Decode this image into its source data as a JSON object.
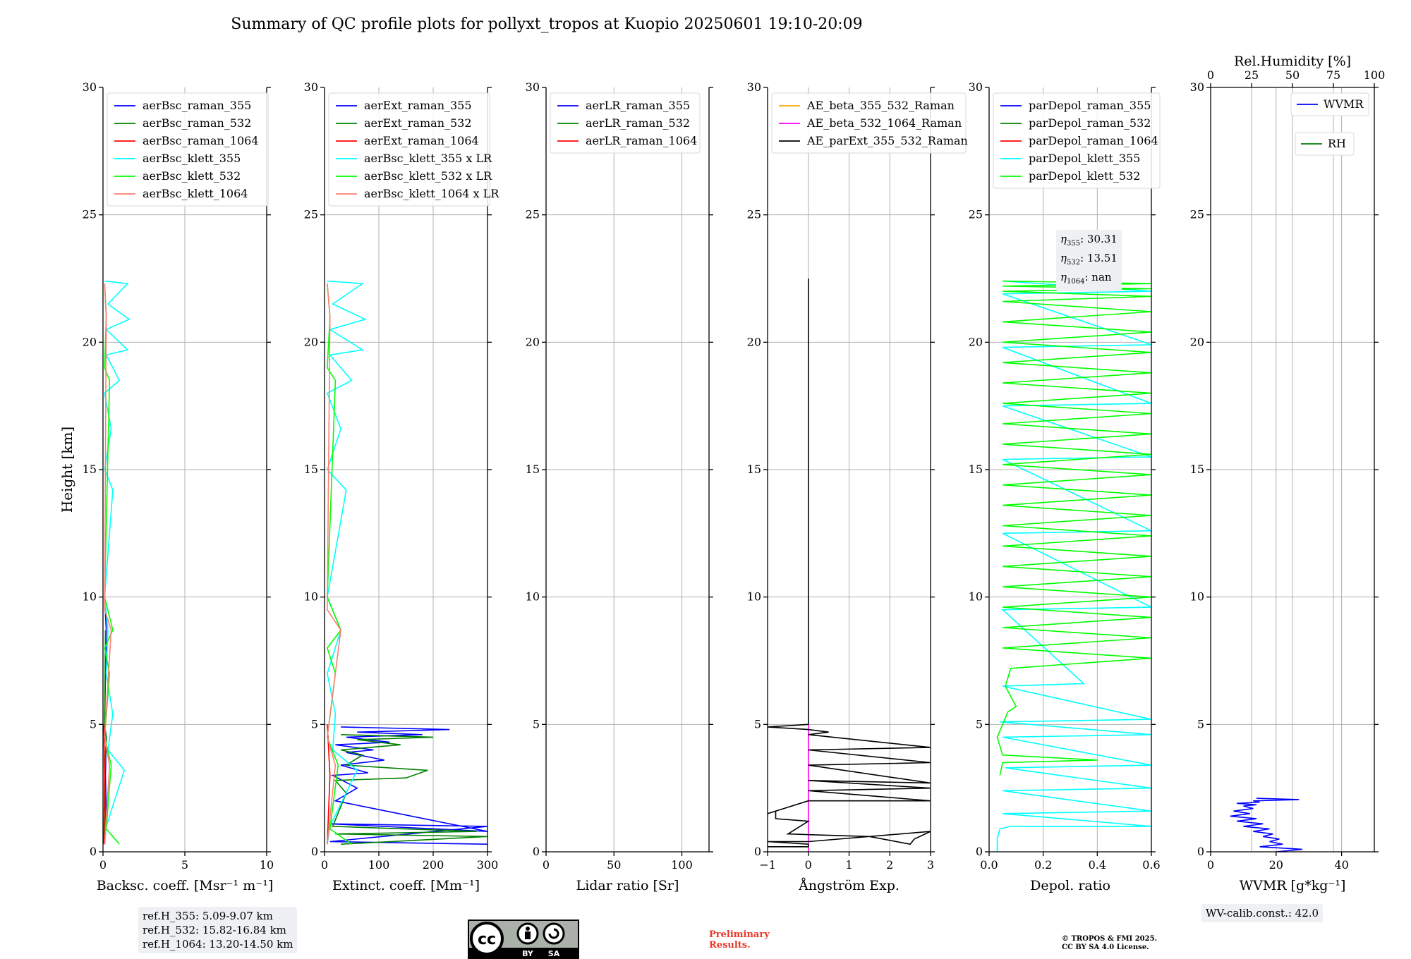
{
  "figure_title": "Summary of QC profile plots for pollyxt_tropos at Kuopio 20250601 19:10-20:09",
  "ylabel": "Height [km]",
  "ref_heights": [
    "ref.H_355: 5.09-9.07 km",
    "ref.H_532: 15.82-16.84 km",
    "ref.H_1064: 13.20-14.50 km"
  ],
  "eta_lines": {
    "e355": "30.31",
    "e532": "13.51",
    "e1064": "nan"
  },
  "wv_calib": "WV-calib.const.: 42.0",
  "preliminary": [
    "Preliminary",
    "Results."
  ],
  "copyright": [
    "© TROPOS & FMI 2025.",
    "CC BY SA 4.0 License."
  ],
  "license_badge": {
    "left": "cc",
    "by": "BY",
    "sa": "SA"
  },
  "colors": {
    "blue": "#0000ff",
    "green": "#008000",
    "red": "#ff0000",
    "cyan": "#00ffff",
    "lime": "#00ff00",
    "salmon": "#fa8072",
    "orange": "#ffa500",
    "magenta": "#ff00ff",
    "black": "#000000"
  },
  "chart_data": [
    {
      "type": "line",
      "xlabel": "Backsc. coeff. [Msr⁻¹ m⁻¹]",
      "xlim": [
        0,
        10
      ],
      "ylim": [
        0,
        30
      ],
      "xticks": [
        0,
        5,
        10
      ],
      "yticks": [
        0,
        5,
        10,
        15,
        20,
        25,
        30
      ],
      "grid": true,
      "legend": "top-left",
      "series": [
        {
          "name": "aerBsc_raman_355",
          "color": "#0000ff",
          "x": [
            0.1,
            0.2,
            0.15,
            0.2,
            0.1,
            0.2,
            0.1
          ],
          "y": [
            0.3,
            1.5,
            3.0,
            4.5,
            5.0,
            8.7,
            10.0
          ]
        },
        {
          "name": "aerBsc_raman_532",
          "color": "#008000",
          "x": [
            0.1,
            0.15,
            0.1,
            0.2,
            0.1,
            0.15
          ],
          "y": [
            0.3,
            1.5,
            3.0,
            4.5,
            5.0,
            8.7
          ]
        },
        {
          "name": "aerBsc_raman_1064",
          "color": "#ff0000",
          "x": [
            0.05,
            0.1,
            0.05
          ],
          "y": [
            0.3,
            3.0,
            5.0
          ]
        },
        {
          "name": "aerBsc_klett_355",
          "color": "#00ffff",
          "x": [
            0.1,
            0.2,
            1.3,
            0.3,
            0.6,
            0.2,
            0.3,
            0.1,
            0.6,
            0.1,
            0.5,
            0.1,
            1.0,
            0.2,
            1.5,
            0.2,
            1.6,
            0.3,
            1.5,
            0.1
          ],
          "y": [
            0.3,
            1.0,
            3.2,
            4.0,
            5.4,
            7.0,
            8.7,
            10.0,
            14.2,
            15.0,
            16.6,
            18.0,
            18.5,
            19.5,
            19.7,
            20.5,
            20.9,
            21.5,
            22.3,
            22.4
          ]
        },
        {
          "name": "aerBsc_klett_532",
          "color": "#00ff00",
          "x": [
            1.0,
            0.2,
            0.5,
            0.1,
            0.4,
            0.1,
            0.6,
            0.1,
            0.4,
            0.1,
            0.2,
            0.1
          ],
          "y": [
            0.3,
            0.9,
            3.4,
            4.5,
            7.0,
            8.0,
            8.7,
            10.0,
            18.5,
            19.0,
            21.0,
            22.3
          ]
        },
        {
          "name": "aerBsc_klett_1064",
          "color": "#fa8072",
          "x": [
            0.1,
            0.4,
            0.1,
            0.5,
            0.1,
            0.2,
            0.1
          ],
          "y": [
            0.3,
            3.4,
            4.5,
            8.7,
            9.5,
            21.0,
            22.3
          ]
        }
      ]
    },
    {
      "type": "line",
      "xlabel": "Extinct. coeff. [Mm⁻¹]",
      "xlim": [
        0,
        300
      ],
      "ylim": [
        0,
        30
      ],
      "xticks": [
        0,
        100,
        200,
        300
      ],
      "yticks": [
        0,
        5,
        10,
        15,
        20,
        25,
        30
      ],
      "grid": true,
      "legend": "top-left",
      "series": [
        {
          "name": "aerExt_raman_355",
          "color": "#0000ff",
          "x": [
            300,
            10,
            300,
            10,
            300,
            20,
            60,
            15,
            80,
            30,
            110,
            40,
            90,
            20,
            120,
            40,
            180,
            60,
            230,
            30
          ],
          "y": [
            0.3,
            0.4,
            1.0,
            1.1,
            0.8,
            2.0,
            2.5,
            3.0,
            3.1,
            3.4,
            3.6,
            3.9,
            4.0,
            4.2,
            4.3,
            4.5,
            4.6,
            4.7,
            4.8,
            4.9
          ]
        },
        {
          "name": "aerExt_raman_532",
          "color": "#008000",
          "x": [
            30,
            300,
            20,
            280,
            15,
            40,
            20,
            150,
            190,
            40,
            70,
            30,
            140,
            60,
            200,
            30
          ],
          "y": [
            0.3,
            0.6,
            0.7,
            0.8,
            1.0,
            2.3,
            2.8,
            2.9,
            3.2,
            3.4,
            3.8,
            4.0,
            4.2,
            4.4,
            4.5,
            4.6
          ]
        },
        {
          "name": "aerExt_raman_1064",
          "color": "#ff0000",
          "x": [
            5,
            10,
            5
          ],
          "y": [
            0.3,
            3.0,
            5.0
          ]
        },
        {
          "name": "aerBsc_klett_355 x LR",
          "color": "#00ffff",
          "x": [
            5,
            10,
            60,
            15,
            20,
            5,
            30,
            5,
            40,
            5,
            30,
            5,
            50,
            10,
            70,
            10,
            75,
            15,
            70,
            5
          ],
          "y": [
            0.3,
            1.0,
            3.2,
            4.0,
            5.4,
            7.0,
            8.7,
            10.0,
            14.2,
            15.0,
            16.6,
            18.0,
            18.5,
            19.5,
            19.7,
            20.5,
            20.9,
            21.5,
            22.3,
            22.4
          ]
        },
        {
          "name": "aerBsc_klett_532 x LR",
          "color": "#00ff00",
          "x": [
            50,
            10,
            25,
            5,
            20,
            5,
            30,
            5,
            20,
            5,
            10,
            5
          ],
          "y": [
            0.3,
            0.9,
            3.4,
            4.5,
            7.0,
            8.0,
            8.7,
            10.0,
            18.5,
            19.0,
            21.0,
            22.3
          ]
        },
        {
          "name": "aerBsc_klett_1064 x LR",
          "color": "#fa8072",
          "x": [
            5,
            20,
            5,
            30,
            5,
            10,
            5
          ],
          "y": [
            0.3,
            3.4,
            4.5,
            8.7,
            9.5,
            21.0,
            22.3
          ]
        }
      ]
    },
    {
      "type": "line",
      "xlabel": "Lidar ratio [Sr]",
      "xlim": [
        0,
        120
      ],
      "ylim": [
        0,
        30
      ],
      "xticks": [
        0,
        50,
        100
      ],
      "yticks": [
        0,
        5,
        10,
        15,
        20,
        25,
        30
      ],
      "grid": true,
      "legend": "top-left",
      "series": [
        {
          "name": "aerLR_raman_355",
          "color": "#0000ff",
          "x": [],
          "y": []
        },
        {
          "name": "aerLR_raman_532",
          "color": "#008000",
          "x": [],
          "y": []
        },
        {
          "name": "aerLR_raman_1064",
          "color": "#ff0000",
          "x": [],
          "y": []
        }
      ]
    },
    {
      "type": "line",
      "xlabel": "Ångström Exp.",
      "xlim": [
        -1,
        3
      ],
      "ylim": [
        0,
        30
      ],
      "xticks": [
        -1,
        0,
        1,
        2,
        3
      ],
      "xticklabels": [
        "−1",
        "0",
        "1",
        "2",
        "3"
      ],
      "yticks": [
        0,
        5,
        10,
        15,
        20,
        25,
        30
      ],
      "grid": true,
      "legend": "top-left",
      "series": [
        {
          "name": "AE_beta_355_532_Raman",
          "color": "#ffa500",
          "x": [],
          "y": []
        },
        {
          "name": "AE_beta_532_1064_Raman",
          "color": "#ff00ff",
          "x": [
            0,
            0
          ],
          "y": [
            0,
            5.0
          ]
        },
        {
          "name": "AE_parExt_355_532_Raman",
          "color": "#000000",
          "x": [
            -1,
            0,
            0,
            -1,
            0,
            3,
            2.6,
            2.5,
            1.5,
            -0.5,
            0,
            -0.8,
            -0.8,
            -1,
            0,
            3,
            0,
            3,
            0,
            3,
            0,
            3,
            0,
            3,
            0,
            0.5,
            0,
            -1,
            0,
            0
          ],
          "y": [
            0.2,
            0.2,
            0.3,
            0.4,
            0.4,
            0.8,
            0.5,
            0.3,
            0.6,
            0.7,
            1.2,
            1.3,
            1.6,
            1.5,
            2.0,
            2.0,
            2.4,
            2.5,
            2.8,
            2.7,
            3.4,
            3.5,
            4.0,
            4.1,
            4.6,
            4.7,
            4.8,
            4.9,
            5.0,
            22.5
          ]
        }
      ]
    },
    {
      "type": "line",
      "xlabel": "Depol. ratio",
      "xlim": [
        0,
        0.6
      ],
      "ylim": [
        0,
        30
      ],
      "xticks": [
        0,
        0.2,
        0.4,
        0.6
      ],
      "xticklabels": [
        "0.0",
        "0.2",
        "0.4",
        "0.6"
      ],
      "yticks": [
        0,
        5,
        10,
        15,
        20,
        25,
        30
      ],
      "grid": true,
      "legend": "top-left",
      "annotation": "η₃₅₅: 30.31 / η₅₃₂: 13.51 / η₁₀₆₄: nan",
      "series": [
        {
          "name": "parDepol_raman_355",
          "color": "#0000ff",
          "x": [],
          "y": []
        },
        {
          "name": "parDepol_raman_532",
          "color": "#008000",
          "x": [],
          "y": []
        },
        {
          "name": "parDepol_raman_1064",
          "color": "#ff0000",
          "x": [],
          "y": []
        },
        {
          "name": "parDepol_klett_355",
          "color": "#00ffff",
          "x": [
            0.03,
            0.03,
            0.04,
            0.08,
            0.6,
            0.05,
            0.6,
            0.05,
            0.6,
            0.06,
            0.6,
            0.05,
            0.6,
            0.04,
            0.6,
            0.05,
            0.35,
            0.05,
            0.6,
            0.05,
            0.6,
            0.05,
            0.6,
            0.05,
            0.6,
            0.05,
            0.6,
            0.05,
            0.6,
            0.05
          ],
          "y": [
            0,
            0.5,
            0.9,
            1.0,
            1.0,
            1.5,
            1.6,
            2.4,
            2.5,
            3.3,
            3.4,
            4.5,
            4.6,
            5.1,
            5.2,
            6.5,
            6.6,
            9.5,
            9.6,
            12.5,
            12.6,
            15.4,
            15.5,
            17.5,
            17.6,
            19.8,
            19.9,
            21.9,
            22.0,
            22.4
          ]
        },
        {
          "name": "parDepol_klett_532",
          "color": "#00ff00",
          "x": [
            0.04,
            0.05,
            0.4,
            0.05,
            0.03,
            0.07,
            0.1,
            0.06,
            0.08,
            0.6,
            0.05,
            0.6,
            0.05,
            0.6,
            0.05,
            0.6,
            0.05,
            0.6,
            0.05,
            0.6,
            0.05,
            0.6,
            0.05,
            0.6,
            0.05,
            0.6,
            0.05,
            0.6,
            0.05,
            0.6,
            0.05,
            0.6,
            0.05,
            0.6,
            0.05,
            0.6,
            0.05,
            0.6,
            0.05,
            0.6,
            0.05,
            0.6,
            0.05,
            0.6,
            0.05,
            0.6,
            0.05,
            0.6,
            0.05,
            0.6,
            0.05
          ],
          "y": [
            3.0,
            3.5,
            3.6,
            3.8,
            4.5,
            5.5,
            5.7,
            6.5,
            7.2,
            7.6,
            8.0,
            8.4,
            8.8,
            9.2,
            9.6,
            10.0,
            10.4,
            10.8,
            11.2,
            11.6,
            12.0,
            12.4,
            12.8,
            13.2,
            13.6,
            14.0,
            14.4,
            14.8,
            15.2,
            15.6,
            16.0,
            16.4,
            16.8,
            17.2,
            17.6,
            18.0,
            18.4,
            18.8,
            19.2,
            19.6,
            20.0,
            20.4,
            20.8,
            21.2,
            21.6,
            21.8,
            22.0,
            22.1,
            22.2,
            22.3,
            22.4
          ]
        }
      ]
    },
    {
      "type": "line",
      "xlabel": "WVMR [g*kg⁻¹]",
      "xlim": [
        0,
        50
      ],
      "ylim": [
        0,
        30
      ],
      "xticks": [
        0,
        20,
        40
      ],
      "yticks": [
        0,
        5,
        10,
        15,
        20,
        25,
        30
      ],
      "grid": true,
      "legend": "top-right",
      "x2label": "Rel.Humidity [%]",
      "x2lim": [
        0,
        100
      ],
      "x2ticks": [
        0,
        25,
        50,
        75,
        100
      ],
      "series": [
        {
          "name": "WVMR",
          "color": "#0000ff",
          "x": [
            20,
            28,
            15,
            22,
            18,
            21,
            16,
            19,
            13,
            18,
            10,
            16,
            8,
            14,
            6,
            12,
            7,
            13,
            10,
            14,
            8,
            15,
            13,
            27,
            14
          ],
          "y": [
            0,
            0.1,
            0.2,
            0.3,
            0.4,
            0.5,
            0.6,
            0.7,
            0.8,
            0.9,
            1.0,
            1.1,
            1.2,
            1.3,
            1.4,
            1.5,
            1.6,
            1.7,
            1.8,
            1.85,
            1.9,
            1.95,
            2.0,
            2.05,
            2.1
          ]
        },
        {
          "name": "RH",
          "color": "#008000",
          "x": [],
          "y": []
        }
      ]
    }
  ]
}
